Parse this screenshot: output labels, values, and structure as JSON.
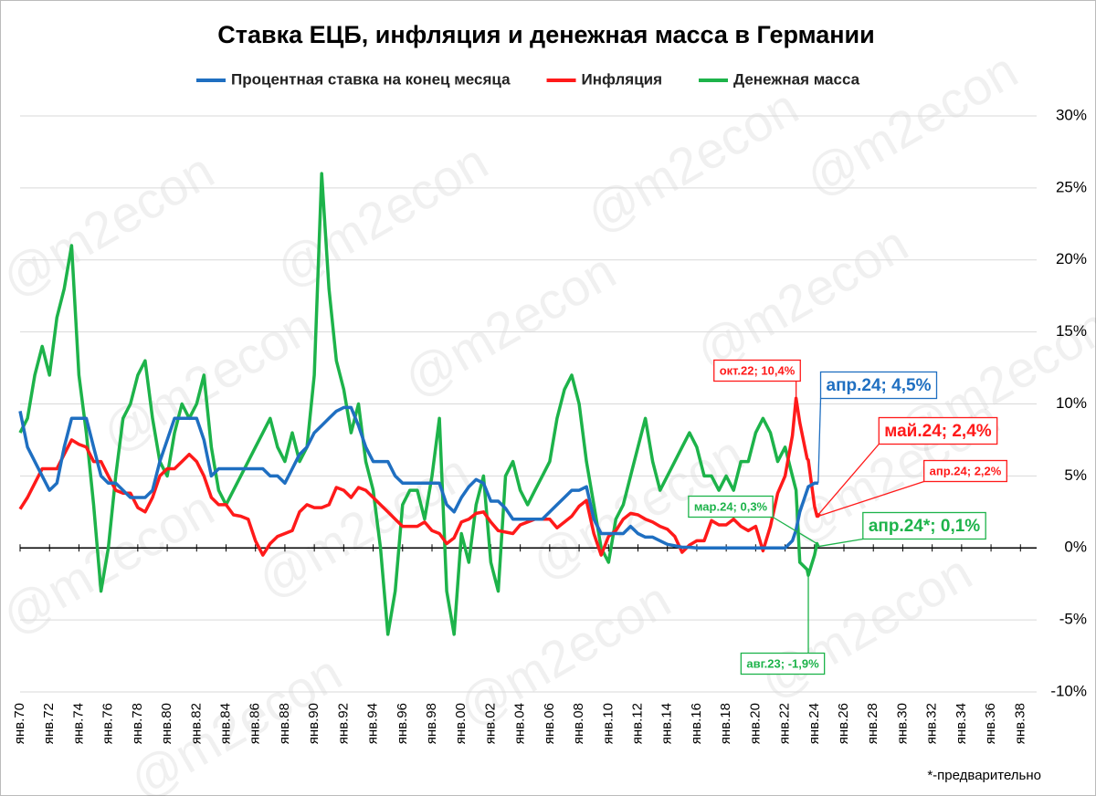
{
  "chart_data": {
    "type": "line",
    "title": "Ставка ЕЦБ, инфляция и денежная масса в Германии",
    "footnote": "*-предварительно",
    "watermark": "@m2econ",
    "x": [
      1970,
      1970.5,
      1971,
      1971.5,
      1972,
      1972.5,
      1973,
      1973.5,
      1974,
      1974.5,
      1975,
      1975.5,
      1976,
      1976.5,
      1977,
      1977.5,
      1978,
      1978.5,
      1979,
      1979.5,
      1980,
      1980.5,
      1981,
      1981.5,
      1982,
      1982.5,
      1983,
      1983.5,
      1984,
      1984.5,
      1985,
      1985.5,
      1986,
      1986.5,
      1987,
      1987.5,
      1988,
      1988.5,
      1989,
      1989.5,
      1990,
      1990.5,
      1991,
      1991.5,
      1992,
      1992.5,
      1993,
      1993.5,
      1994,
      1994.5,
      1995,
      1995.5,
      1996,
      1996.5,
      1997,
      1997.5,
      1998,
      1998.5,
      1999,
      1999.5,
      2000,
      2000.5,
      2001,
      2001.5,
      2002,
      2002.5,
      2003,
      2003.5,
      2004,
      2004.5,
      2005,
      2005.5,
      2006,
      2006.5,
      2007,
      2007.5,
      2008,
      2008.5,
      2009,
      2009.5,
      2010,
      2010.5,
      2011,
      2011.5,
      2012,
      2012.5,
      2013,
      2013.5,
      2014,
      2014.5,
      2015,
      2015.5,
      2016,
      2016.5,
      2017,
      2017.5,
      2018,
      2018.5,
      2019,
      2019.5,
      2020,
      2020.5,
      2021,
      2021.5,
      2022,
      2022.5,
      2022.75,
      2023,
      2023.5,
      2023.58,
      2024,
      2024.17,
      2024.25,
      2024.33
    ],
    "series": [
      {
        "name": "Процентная ставка на конец месяца",
        "color": "#1f6fc1",
        "values": [
          9.5,
          7,
          6,
          5,
          4,
          4.5,
          7,
          9,
          9,
          9,
          7,
          5,
          4.5,
          4.5,
          4,
          3.5,
          3.5,
          3.5,
          4,
          6,
          7.5,
          9,
          9,
          9,
          9,
          7.5,
          5,
          5.5,
          5.5,
          5.5,
          5.5,
          5.5,
          5.5,
          5.5,
          5,
          5,
          4.5,
          5.5,
          6.5,
          7,
          8,
          8.5,
          9,
          9.5,
          9.75,
          9.75,
          8.5,
          7,
          6,
          6,
          6,
          5,
          4.5,
          4.5,
          4.5,
          4.5,
          4.5,
          4.5,
          3,
          2.5,
          3.5,
          4.25,
          4.75,
          4.5,
          3.25,
          3.25,
          2.75,
          2,
          2,
          2,
          2,
          2,
          2.5,
          3,
          3.5,
          4,
          4,
          4.25,
          2,
          1,
          1,
          1,
          1,
          1.5,
          1,
          0.75,
          0.75,
          0.5,
          0.25,
          0.15,
          0.05,
          0.05,
          0,
          0,
          0,
          0,
          0,
          0,
          0,
          0,
          0,
          0,
          0,
          0,
          0,
          0.5,
          1.25,
          2.5,
          4,
          4.25,
          4.5,
          4.5,
          4.5,
          null
        ]
      },
      {
        "name": "Инфляция",
        "color": "#ff1a1a",
        "values": [
          2.7,
          3.5,
          4.5,
          5.5,
          5.5,
          5.5,
          6.5,
          7.5,
          7.2,
          7,
          6,
          6,
          5,
          4,
          3.8,
          3.8,
          2.8,
          2.5,
          3.5,
          5,
          5.5,
          5.5,
          6,
          6.5,
          6,
          5,
          3.5,
          3,
          3,
          2.3,
          2.2,
          2,
          0.5,
          -0.5,
          0.3,
          0.8,
          1,
          1.2,
          2.5,
          3,
          2.8,
          2.8,
          3,
          4.2,
          4,
          3.5,
          4.2,
          4,
          3.5,
          3,
          2.5,
          2,
          1.5,
          1.5,
          1.5,
          1.8,
          1.2,
          1,
          0.3,
          0.7,
          1.8,
          2,
          2.4,
          2.5,
          1.8,
          1.2,
          1.1,
          1,
          1.6,
          1.8,
          2,
          2,
          2,
          1.4,
          1.8,
          2.2,
          2.9,
          3.3,
          1,
          -0.5,
          0.8,
          1.2,
          2,
          2.4,
          2.3,
          2,
          1.8,
          1.5,
          1.3,
          0.8,
          -0.3,
          0.2,
          0.5,
          0.5,
          1.9,
          1.6,
          1.6,
          2,
          1.5,
          1.2,
          1.5,
          -0.2,
          1.5,
          3.8,
          5,
          7.8,
          10.4,
          8.7,
          6.2,
          6.1,
          2.9,
          2.2,
          2.2,
          2.4
        ]
      },
      {
        "name": "Денежная масса",
        "color": "#1db34a",
        "values": [
          8,
          9,
          12,
          14,
          12,
          16,
          18,
          21,
          12,
          8,
          3,
          -3,
          0,
          5,
          9,
          10,
          12,
          13,
          9,
          6,
          5,
          8,
          10,
          9,
          10,
          12,
          7,
          4,
          3,
          4,
          5,
          6,
          7,
          8,
          9,
          7,
          6,
          8,
          6,
          7,
          12,
          26,
          18,
          13,
          11,
          8,
          10,
          6,
          4,
          0,
          -6,
          -3,
          3,
          4,
          4,
          2,
          5,
          9,
          -3,
          -6,
          1,
          -1,
          3,
          5,
          -1,
          -3,
          5,
          6,
          4,
          3,
          4,
          5,
          6,
          9,
          11,
          12,
          10,
          6,
          3,
          0,
          -1,
          2,
          3,
          5,
          7,
          9,
          6,
          4,
          5,
          6,
          7,
          8,
          7,
          5,
          5,
          4,
          5,
          4,
          6,
          6,
          8,
          9,
          8,
          6,
          7,
          5,
          4,
          -1,
          -1.5,
          -1.9,
          -0.5,
          0.3,
          0.1,
          null
        ]
      }
    ],
    "annotations": [
      {
        "text": "окт.22; 10,4%",
        "color": "#ff1a1a"
      },
      {
        "text": "апр.24; 4,5%",
        "color": "#1f6fc1"
      },
      {
        "text": "май.24; 2,4%",
        "color": "#ff1a1a"
      },
      {
        "text": "апр.24; 2,2%",
        "color": "#ff1a1a"
      },
      {
        "text": "мар.24; 0,3%",
        "color": "#1db34a"
      },
      {
        "text": "апр.24*; 0,1%",
        "color": "#1db34a"
      },
      {
        "text": "авг.23; -1,9%",
        "color": "#1db34a"
      }
    ],
    "xlim": [
      1970,
      2039.1
    ],
    "xticks": [
      {
        "value": 1970,
        "label": "янв.70"
      },
      {
        "value": 1972,
        "label": "янв.72"
      },
      {
        "value": 1974,
        "label": "янв.74"
      },
      {
        "value": 1976,
        "label": "янв.76"
      },
      {
        "value": 1978,
        "label": "янв.78"
      },
      {
        "value": 1980,
        "label": "янв.80"
      },
      {
        "value": 1982,
        "label": "янв.82"
      },
      {
        "value": 1984,
        "label": "янв.84"
      },
      {
        "value": 1986,
        "label": "янв.86"
      },
      {
        "value": 1988,
        "label": "янв.88"
      },
      {
        "value": 1990,
        "label": "янв.90"
      },
      {
        "value": 1992,
        "label": "янв.92"
      },
      {
        "value": 1994,
        "label": "янв.94"
      },
      {
        "value": 1996,
        "label": "янв.96"
      },
      {
        "value": 1998,
        "label": "янв.98"
      },
      {
        "value": 2000,
        "label": "янв.00"
      },
      {
        "value": 2002,
        "label": "янв.02"
      },
      {
        "value": 2004,
        "label": "янв.04"
      },
      {
        "value": 2006,
        "label": "янв.06"
      },
      {
        "value": 2008,
        "label": "янв.08"
      },
      {
        "value": 2010,
        "label": "янв.10"
      },
      {
        "value": 2012,
        "label": "янв.12"
      },
      {
        "value": 2014,
        "label": "янв.14"
      },
      {
        "value": 2016,
        "label": "янв.16"
      },
      {
        "value": 2018,
        "label": "янв.18"
      },
      {
        "value": 2020,
        "label": "янв.20"
      },
      {
        "value": 2022,
        "label": "янв.22"
      },
      {
        "value": 2024,
        "label": "янв.24"
      },
      {
        "value": 2026,
        "label": "янв.26"
      },
      {
        "value": 2028,
        "label": "янв.28"
      },
      {
        "value": 2030,
        "label": "янв.30"
      },
      {
        "value": 2032,
        "label": "янв.32"
      },
      {
        "value": 2034,
        "label": "янв.34"
      },
      {
        "value": 2036,
        "label": "янв.36"
      },
      {
        "value": 2038,
        "label": "янв.38"
      }
    ],
    "ylim": [
      -10,
      30
    ],
    "yticks": [
      {
        "value": 30,
        "label": "30%"
      },
      {
        "value": 25,
        "label": "25%"
      },
      {
        "value": 20,
        "label": "20%"
      },
      {
        "value": 15,
        "label": "15%"
      },
      {
        "value": 10,
        "label": "10%"
      },
      {
        "value": 5,
        "label": "5%"
      },
      {
        "value": 0,
        "label": "0%"
      },
      {
        "value": -5,
        "label": "-5%"
      },
      {
        "value": -10,
        "label": "-10%"
      }
    ],
    "grid": true
  }
}
